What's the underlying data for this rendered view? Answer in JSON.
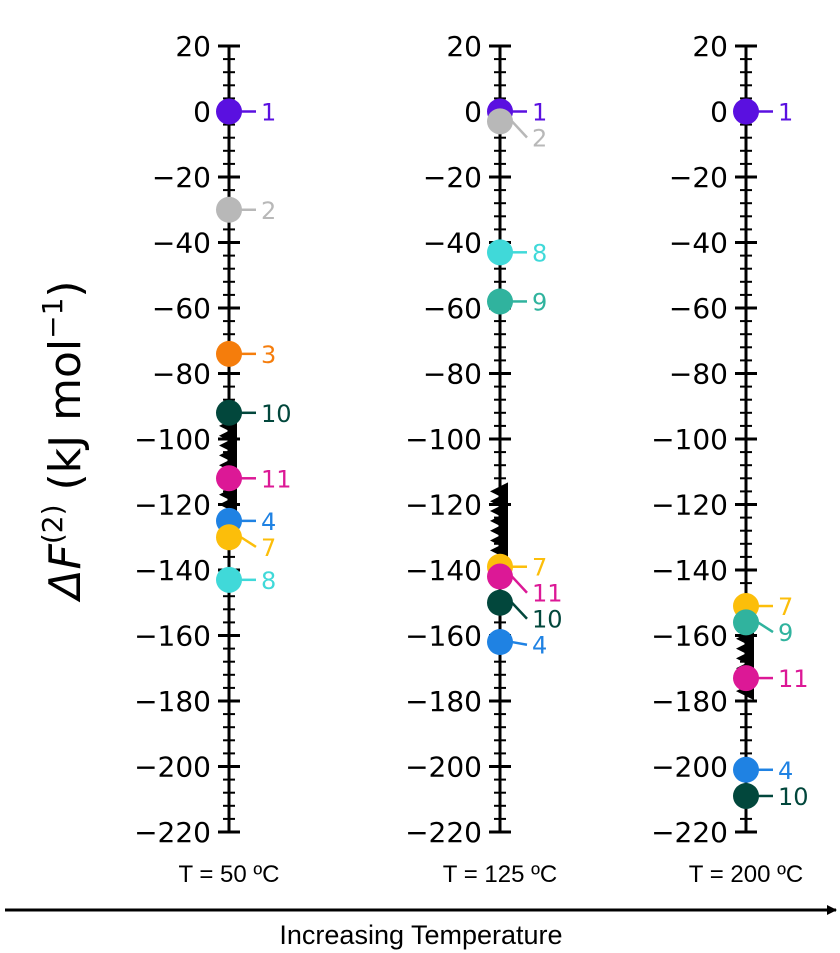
{
  "chart_data": {
    "type": "scatter",
    "ylabel_symbol": "ΔF",
    "ylabel_superscript": "(2)",
    "ylabel_units": "(kJ mol",
    "ylabel_unit_power": "−1",
    "ylabel_close": ")",
    "xlabel": "Increasing Temperature",
    "ylim": [
      -220,
      20
    ],
    "yticks": [
      20,
      0,
      -20,
      -40,
      -60,
      -80,
      -100,
      -120,
      -140,
      -160,
      -180,
      -200,
      -220
    ],
    "ytick_labels": [
      "20",
      "0",
      "−20",
      "−40",
      "−60",
      "−80",
      "−100",
      "−120",
      "−140",
      "−160",
      "−180",
      "−200",
      "−220"
    ],
    "colors": {
      "1": "#5a10e0",
      "2": "#b8b8b8",
      "3": "#f57d0c",
      "4": "#1f82e3",
      "7": "#fcbe0a",
      "8": "#40d9d9",
      "9": "#30b39e",
      "10": "#02473c",
      "11": "#dc1896"
    },
    "panels": [
      {
        "temperature": "T = 50 ºC",
        "points": [
          {
            "id": "1",
            "value": 0
          },
          {
            "id": "2",
            "value": -30
          },
          {
            "id": "3",
            "value": -74
          },
          {
            "id": "10",
            "value": -92
          },
          {
            "id": "11",
            "value": -112
          },
          {
            "id": "4",
            "value": -125
          },
          {
            "id": "7",
            "value": -130
          },
          {
            "id": "8",
            "value": -143
          }
        ],
        "triangles": [
          -96,
          -99,
          -102,
          -105,
          -108,
          -111,
          -114,
          -117,
          -120,
          -123,
          -126,
          -129
        ]
      },
      {
        "temperature": "T = 125 ºC",
        "points": [
          {
            "id": "1",
            "value": 0
          },
          {
            "id": "2",
            "value": -3
          },
          {
            "id": "8",
            "value": -43
          },
          {
            "id": "9",
            "value": -58
          },
          {
            "id": "7",
            "value": -139
          },
          {
            "id": "11",
            "value": -142
          },
          {
            "id": "10",
            "value": -150
          },
          {
            "id": "4",
            "value": -162
          }
        ],
        "triangles": [
          -116,
          -119,
          -122,
          -125,
          -128,
          -131,
          -134
        ]
      },
      {
        "temperature": "T = 200 ºC",
        "points": [
          {
            "id": "1",
            "value": 0
          },
          {
            "id": "7",
            "value": -151
          },
          {
            "id": "9",
            "value": -156
          },
          {
            "id": "11",
            "value": -173
          },
          {
            "id": "4",
            "value": -201
          },
          {
            "id": "10",
            "value": -209
          }
        ],
        "triangles": [
          -158,
          -161,
          -164,
          -167,
          -170,
          -177
        ]
      }
    ]
  }
}
